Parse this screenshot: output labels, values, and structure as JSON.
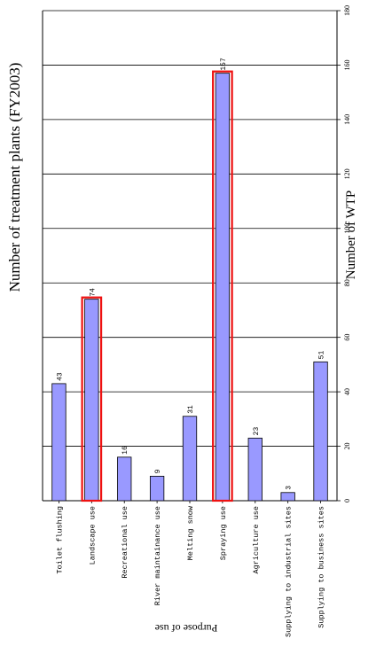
{
  "chart_data": {
    "type": "bar",
    "orientation": "rotated-90",
    "title": "Number of treatment plants (FY2003)",
    "xlabel": "Purpose of use",
    "ylabel": "Number of WTP",
    "ylim": [
      0,
      180
    ],
    "yticks": [
      0,
      20,
      40,
      60,
      80,
      100,
      120,
      140,
      160,
      180
    ],
    "grid": true,
    "categories": [
      "Toilet flushing",
      "Landscape use",
      "Recreational use",
      "River maintainance use",
      "Melting snow",
      "Spraying use",
      "Agriculture use",
      "Supplying to industrial sites",
      "Supplying to business sites"
    ],
    "values": [
      43,
      74,
      16,
      9,
      31,
      157,
      23,
      3,
      51
    ],
    "highlighted": [
      "Landscape use",
      "Spraying use"
    ],
    "colors": {
      "bar_fill": "#9999ff",
      "bar_stroke": "#000000",
      "highlight": "#ee1111",
      "grid": "#000000"
    }
  }
}
